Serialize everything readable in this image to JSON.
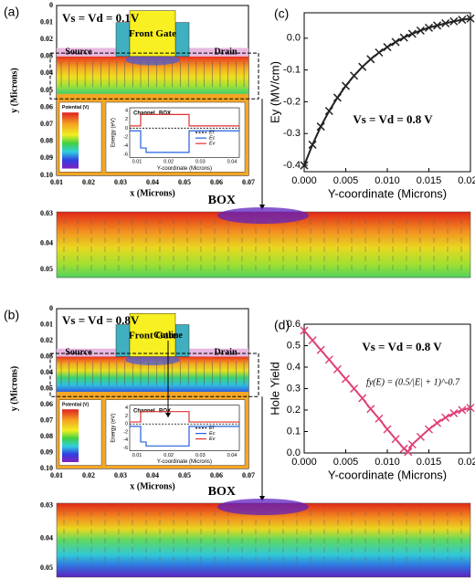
{
  "panels": [
    {
      "label": "(a)",
      "title": "Vs = Vd = 0.1V",
      "source": "Source",
      "gate": "Front Gate",
      "drain": "Drain",
      "y_label": "y (Microns)",
      "x_label": "x (Microns)",
      "yticks": [
        "0",
        "0.01",
        "0.02",
        "0.03",
        "0.04",
        "0.05",
        "0.06",
        "0.07",
        "0.08",
        "0.09",
        "0.10"
      ],
      "xticks": [
        "0.01",
        "0.02",
        "0.03",
        "0.04",
        "0.05",
        "0.06",
        "0.07"
      ],
      "legend_title": "Potential (V)",
      "inset": {
        "channel": "Channel",
        "box": "BOX",
        "y_label": "Energy (eV)",
        "x_label": "Y-coordinate (Microns)",
        "yticks": [
          "4",
          "2",
          "0",
          "-2",
          "-4",
          "-6"
        ],
        "xticks": [
          "0.01",
          "0.02",
          "0.03",
          "0.04"
        ],
        "legend": [
          "Ef",
          "Ec",
          "Ev"
        ]
      },
      "strip": {
        "label": "BOX",
        "yticks": [
          "0.03",
          "0.04",
          "0.05"
        ]
      }
    },
    {
      "label": "(b)",
      "title": "Vs = Vd = 0.8V",
      "source": "Source",
      "gate": "Front Gate",
      "drain": "Drain",
      "cutline": "Cutline",
      "y_label": "y (Microns)",
      "x_label": "x (Microns)",
      "yticks": [
        "0",
        "0.01",
        "0.02",
        "0.03",
        "0.04",
        "0.05",
        "0.06",
        "0.07",
        "0.08",
        "0.09",
        "0.10"
      ],
      "xticks": [
        "0.01",
        "0.02",
        "0.03",
        "0.04",
        "0.05",
        "0.06",
        "0.07"
      ],
      "legend_title": "Potential (V)",
      "inset": {
        "channel": "Channel",
        "box": "BOX",
        "y_label": "Energy (eV)",
        "x_label": "Y-coordinate (Microns)",
        "yticks": [
          "4",
          "2",
          "0",
          "-2",
          "-4",
          "-6"
        ],
        "xticks": [
          "0.01",
          "0.02",
          "0.03",
          "0.04"
        ],
        "legend": [
          "Ef",
          "Ec",
          "Ev"
        ]
      },
      "strip": {
        "label": "BOX",
        "yticks": [
          "0.03",
          "0.04",
          "0.05"
        ]
      }
    }
  ],
  "chart_data": [
    {
      "type": "line",
      "label": "(c)",
      "y_label": "Ey (MV/cm)",
      "x_label": "Y-coordinate (Microns)",
      "annotation": "Vs = Vd = 0.8 V",
      "marker": "x",
      "color": "#222222",
      "x": [
        0,
        0.001,
        0.002,
        0.003,
        0.004,
        0.005,
        0.006,
        0.007,
        0.008,
        0.009,
        0.01,
        0.011,
        0.012,
        0.013,
        0.014,
        0.015,
        0.016,
        0.017,
        0.018,
        0.019,
        0.02
      ],
      "values": [
        -0.4,
        -0.335,
        -0.278,
        -0.229,
        -0.187,
        -0.15,
        -0.118,
        -0.09,
        -0.066,
        -0.045,
        -0.028,
        -0.012,
        0.002,
        0.014,
        0.024,
        0.033,
        0.04,
        0.047,
        0.053,
        0.058,
        0.062
      ],
      "xlim": [
        0,
        0.02
      ],
      "ylim": [
        -0.42,
        0.08
      ],
      "xticks": [
        {
          "value": 0,
          "label": "0.000"
        },
        {
          "value": 0.005,
          "label": "0.005"
        },
        {
          "value": 0.01,
          "label": "0.010"
        },
        {
          "value": 0.015,
          "label": "0.015"
        },
        {
          "value": 0.02,
          "label": "0.020"
        }
      ],
      "yticks": [
        -0.4,
        -0.3,
        -0.2,
        -0.1,
        {
          "value": 0,
          "label": "0.0"
        }
      ]
    },
    {
      "type": "line",
      "label": "(d)",
      "y_label": "Hole Yield",
      "x_label": "Y-coordinate (Microns)",
      "annotation": "Vs = Vd = 0.8 V",
      "formula": "fy(E) = (0.5/|E| + 1)^-0.7",
      "marker": "x",
      "color": "#e0407a",
      "x": [
        0,
        0.001,
        0.002,
        0.003,
        0.004,
        0.005,
        0.006,
        0.007,
        0.008,
        0.009,
        0.01,
        0.011,
        0.012,
        0.0125,
        0.013,
        0.014,
        0.015,
        0.016,
        0.017,
        0.018,
        0.019,
        0.02
      ],
      "values": [
        0.57,
        0.525,
        0.48,
        0.435,
        0.39,
        0.345,
        0.3,
        0.255,
        0.205,
        0.16,
        0.11,
        0.065,
        0.02,
        0.005,
        0.04,
        0.075,
        0.11,
        0.14,
        0.165,
        0.185,
        0.2,
        0.21
      ],
      "xlim": [
        0,
        0.02
      ],
      "ylim": [
        0,
        0.6
      ],
      "xticks": [
        {
          "value": 0,
          "label": "0.000"
        },
        {
          "value": 0.005,
          "label": "0.005"
        },
        {
          "value": 0.01,
          "label": "0.010"
        },
        {
          "value": 0.015,
          "label": "0.015"
        },
        {
          "value": 0.02,
          "label": "0.020"
        }
      ],
      "yticks": [
        {
          "value": 0,
          "label": "0.0"
        },
        0.1,
        0.2,
        0.3,
        0.4,
        0.5,
        0.6
      ]
    }
  ]
}
